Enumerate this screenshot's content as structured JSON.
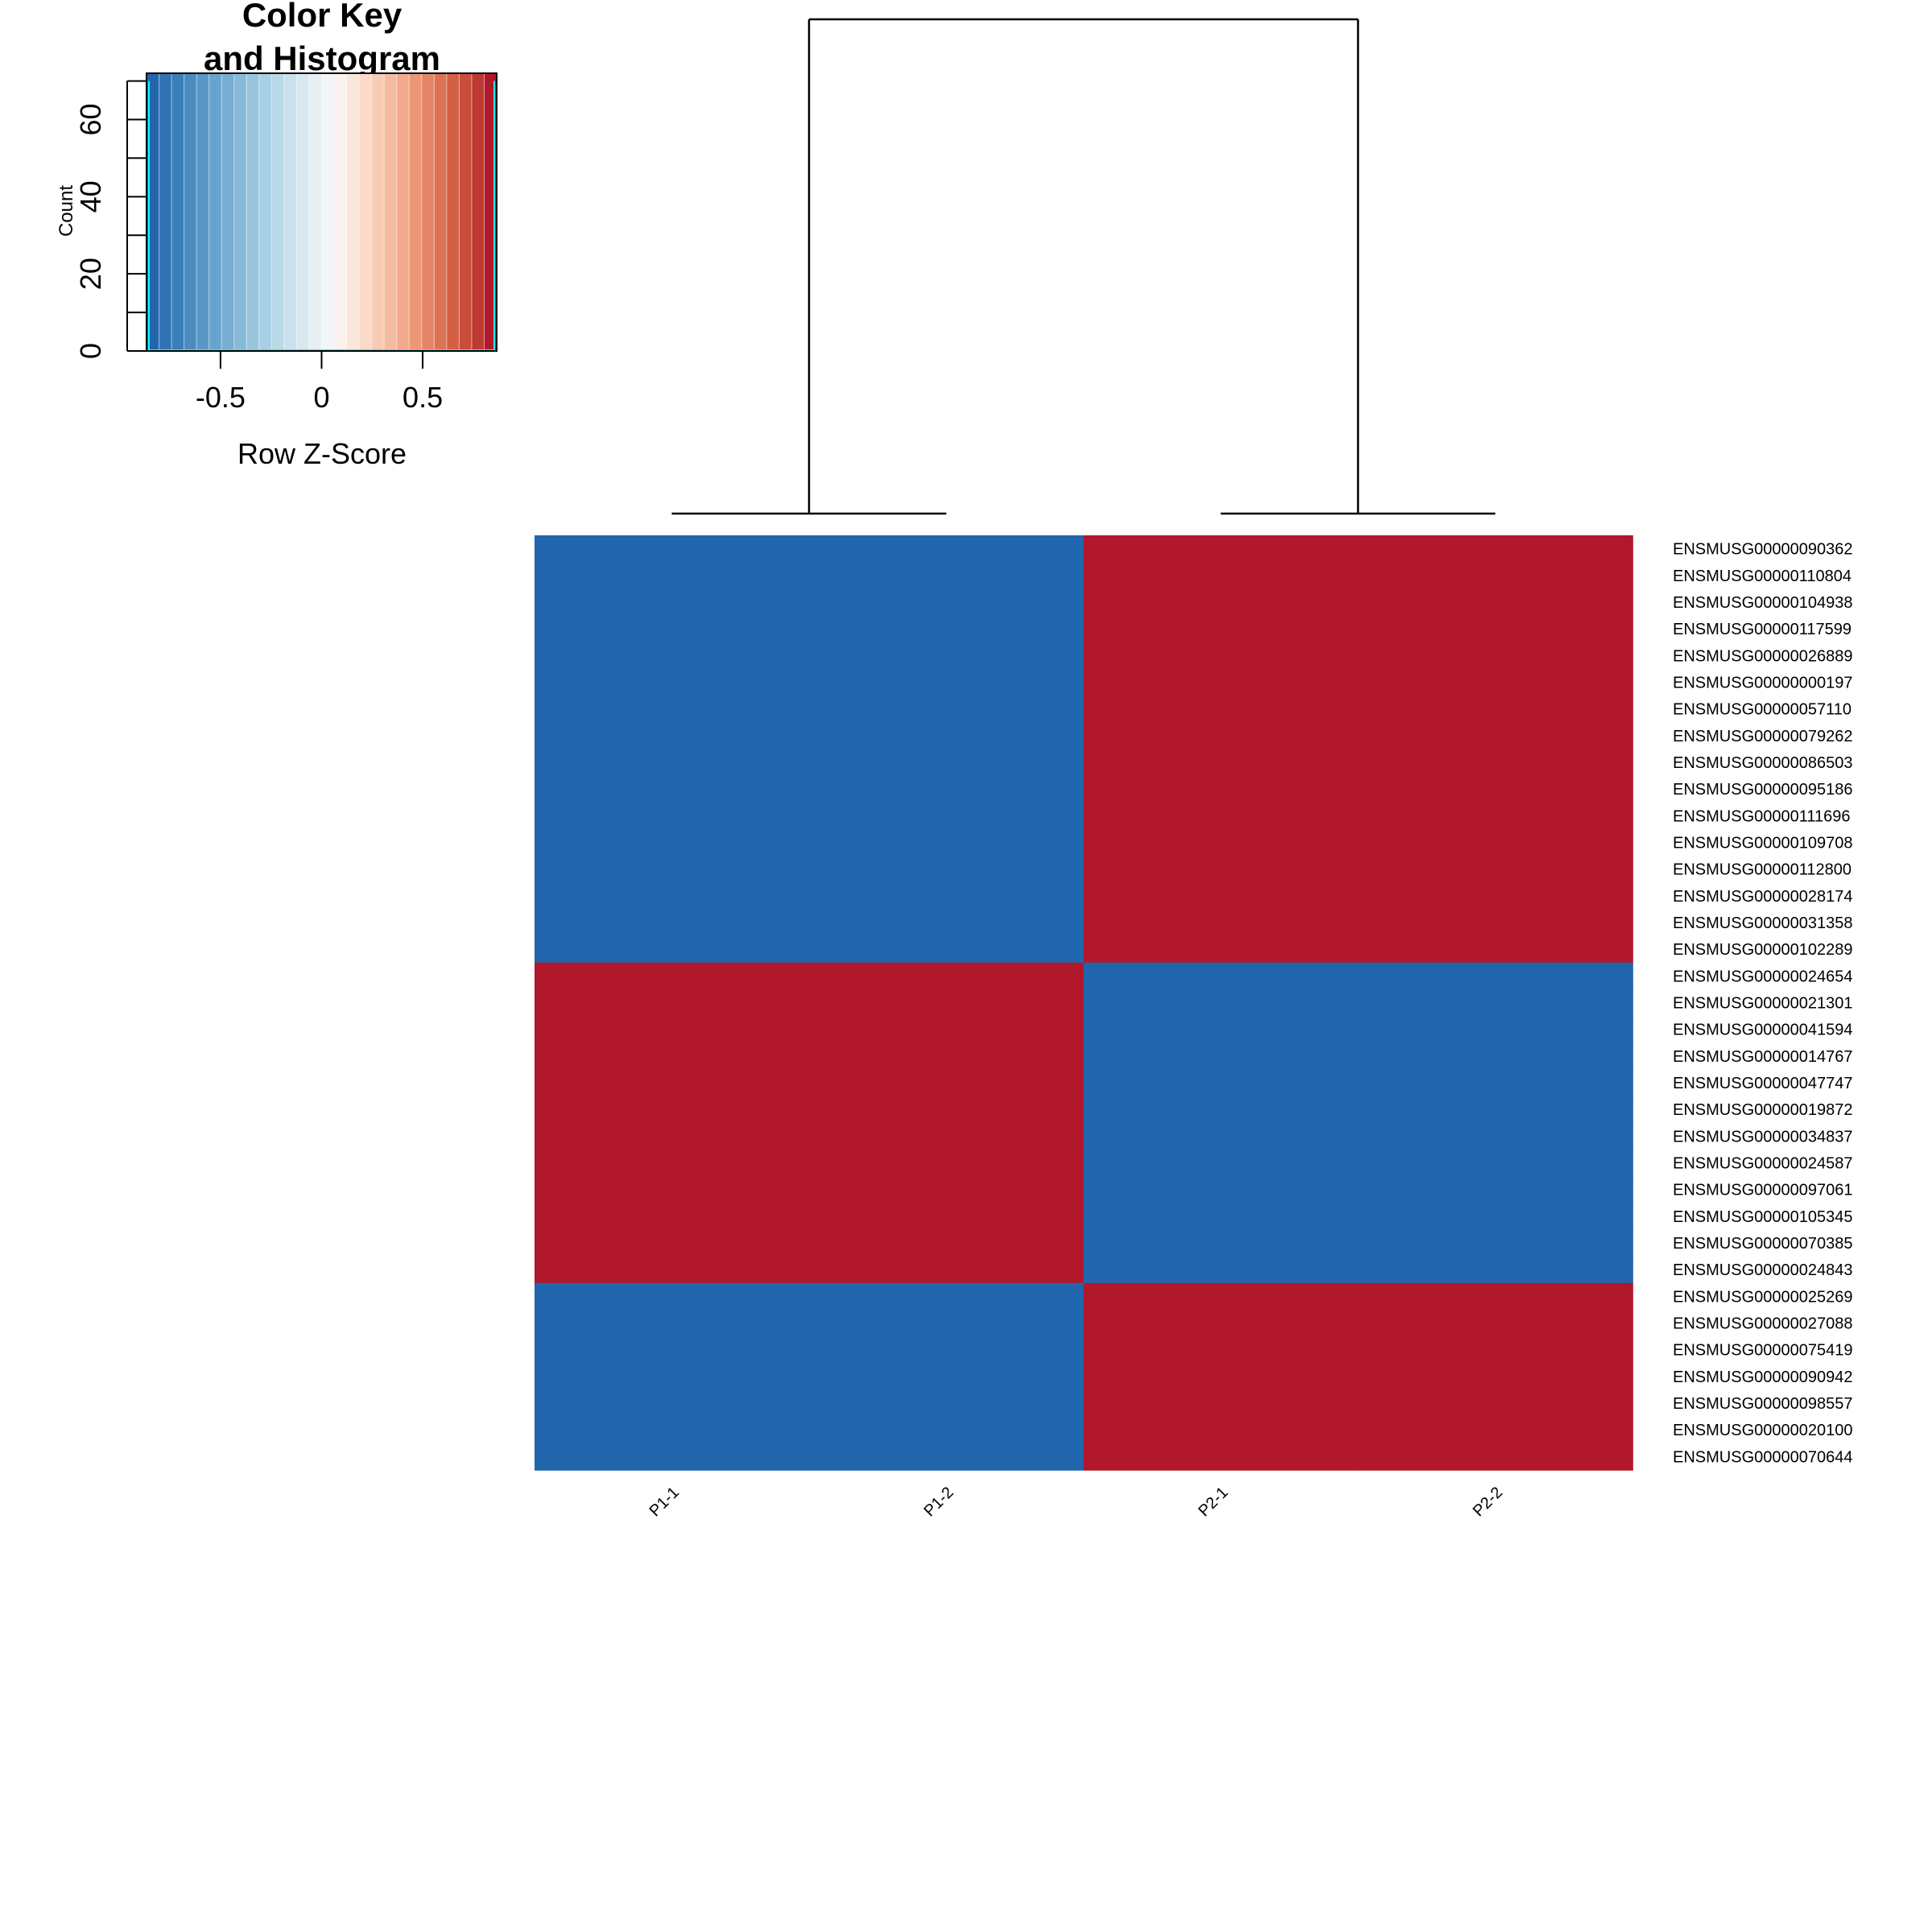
{
  "chart_data": {
    "type": "heatmap",
    "columns": [
      "P1-1",
      "P1-2",
      "P2-1",
      "P2-2"
    ],
    "rows": [
      "ENSMUSG00000090362",
      "ENSMUSG00000110804",
      "ENSMUSG00000104938",
      "ENSMUSG00000117599",
      "ENSMUSG00000026889",
      "ENSMUSG00000000197",
      "ENSMUSG00000057110",
      "ENSMUSG00000079262",
      "ENSMUSG00000086503",
      "ENSMUSG00000095186",
      "ENSMUSG00000111696",
      "ENSMUSG00000109708",
      "ENSMUSG00000112800",
      "ENSMUSG00000028174",
      "ENSMUSG00000031358",
      "ENSMUSG00000102289",
      "ENSMUSG00000024654",
      "ENSMUSG00000021301",
      "ENSMUSG00000041594",
      "ENSMUSG00000014767",
      "ENSMUSG00000047747",
      "ENSMUSG00000019872",
      "ENSMUSG00000034837",
      "ENSMUSG00000024587",
      "ENSMUSG00000097061",
      "ENSMUSG00000105345",
      "ENSMUSG00000070385",
      "ENSMUSG00000024843",
      "ENSMUSG00000025269",
      "ENSMUSG00000027088",
      "ENSMUSG00000075419",
      "ENSMUSG00000090942",
      "ENSMUSG00000098557",
      "ENSMUSG00000020100",
      "ENSMUSG00000070644"
    ],
    "values": [
      [
        -0.866,
        -0.866,
        0.866,
        0.866
      ],
      [
        -0.866,
        -0.866,
        0.866,
        0.866
      ],
      [
        -0.866,
        -0.866,
        0.866,
        0.866
      ],
      [
        -0.866,
        -0.866,
        0.866,
        0.866
      ],
      [
        -0.866,
        -0.866,
        0.866,
        0.866
      ],
      [
        -0.866,
        -0.866,
        0.866,
        0.866
      ],
      [
        -0.866,
        -0.866,
        0.866,
        0.866
      ],
      [
        -0.866,
        -0.866,
        0.866,
        0.866
      ],
      [
        -0.866,
        -0.866,
        0.866,
        0.866
      ],
      [
        -0.866,
        -0.866,
        0.866,
        0.866
      ],
      [
        -0.866,
        -0.866,
        0.866,
        0.866
      ],
      [
        -0.866,
        -0.866,
        0.866,
        0.866
      ],
      [
        -0.866,
        -0.866,
        0.866,
        0.866
      ],
      [
        -0.866,
        -0.866,
        0.866,
        0.866
      ],
      [
        -0.866,
        -0.866,
        0.866,
        0.866
      ],
      [
        -0.866,
        -0.866,
        0.866,
        0.866
      ],
      [
        0.866,
        0.866,
        -0.866,
        -0.866
      ],
      [
        0.866,
        0.866,
        -0.866,
        -0.866
      ],
      [
        0.866,
        0.866,
        -0.866,
        -0.866
      ],
      [
        0.866,
        0.866,
        -0.866,
        -0.866
      ],
      [
        0.866,
        0.866,
        -0.866,
        -0.866
      ],
      [
        0.866,
        0.866,
        -0.866,
        -0.866
      ],
      [
        0.866,
        0.866,
        -0.866,
        -0.866
      ],
      [
        0.866,
        0.866,
        -0.866,
        -0.866
      ],
      [
        0.866,
        0.866,
        -0.866,
        -0.866
      ],
      [
        0.866,
        0.866,
        -0.866,
        -0.866
      ],
      [
        0.866,
        0.866,
        -0.866,
        -0.866
      ],
      [
        0.866,
        0.866,
        -0.866,
        -0.866
      ],
      [
        -0.866,
        -0.866,
        0.866,
        0.866
      ],
      [
        -0.866,
        -0.866,
        0.866,
        0.866
      ],
      [
        -0.866,
        -0.866,
        0.866,
        0.866
      ],
      [
        -0.866,
        -0.866,
        0.866,
        0.866
      ],
      [
        -0.866,
        -0.866,
        0.866,
        0.866
      ],
      [
        -0.866,
        -0.866,
        0.866,
        0.866
      ],
      [
        -0.866,
        -0.866,
        0.866,
        0.866
      ]
    ],
    "colors": {
      "low": "#2166AC",
      "high": "#B2182B"
    },
    "color_key": {
      "title_lines": [
        "Color Key",
        "and Histogram"
      ],
      "xlabel": "Row Z-Score",
      "ylabel": "Count",
      "xticks": [
        -0.5,
        0,
        0.5
      ],
      "xtick_labels": [
        "-0.5",
        "0",
        "0.5"
      ],
      "yticks": [
        0,
        20,
        40,
        60
      ],
      "ytick_labels": [
        "0",
        "20",
        "40",
        "60"
      ],
      "xlim": [
        -0.866,
        0.866
      ],
      "ylim": [
        0,
        72
      ],
      "histogram_color": "#00FFFF",
      "histogram": [
        {
          "x": -0.866,
          "count": 70
        },
        {
          "x": 0.866,
          "count": 70
        }
      ],
      "gradient": [
        "#2166AC",
        "#2F73B3",
        "#3B7FB9",
        "#4A8BC0",
        "#5898C6",
        "#67A3CC",
        "#77AED2",
        "#87BAD8",
        "#98C5DD",
        "#A8CFE3",
        "#B8D9E8",
        "#C8E1EC",
        "#D7E8F0",
        "#E5EFF4",
        "#F1F5F7",
        "#F9F2EF",
        "#FBE6DC",
        "#FAD9C9",
        "#F8CBB5",
        "#F5BBA0",
        "#F1AA8C",
        "#EB9878",
        "#E48665",
        "#DC7354",
        "#D36045",
        "#C84D3A",
        "#BC3A31",
        "#B2182B"
      ]
    },
    "column_dendrogram": {
      "merges": [
        {
          "left": 0,
          "right": 1,
          "height": 0
        },
        {
          "left": 2,
          "right": 3,
          "height": 0
        },
        {
          "left": "P1-1/P1-2",
          "right": "P2-1/P2-2",
          "height": 1
        }
      ]
    }
  }
}
